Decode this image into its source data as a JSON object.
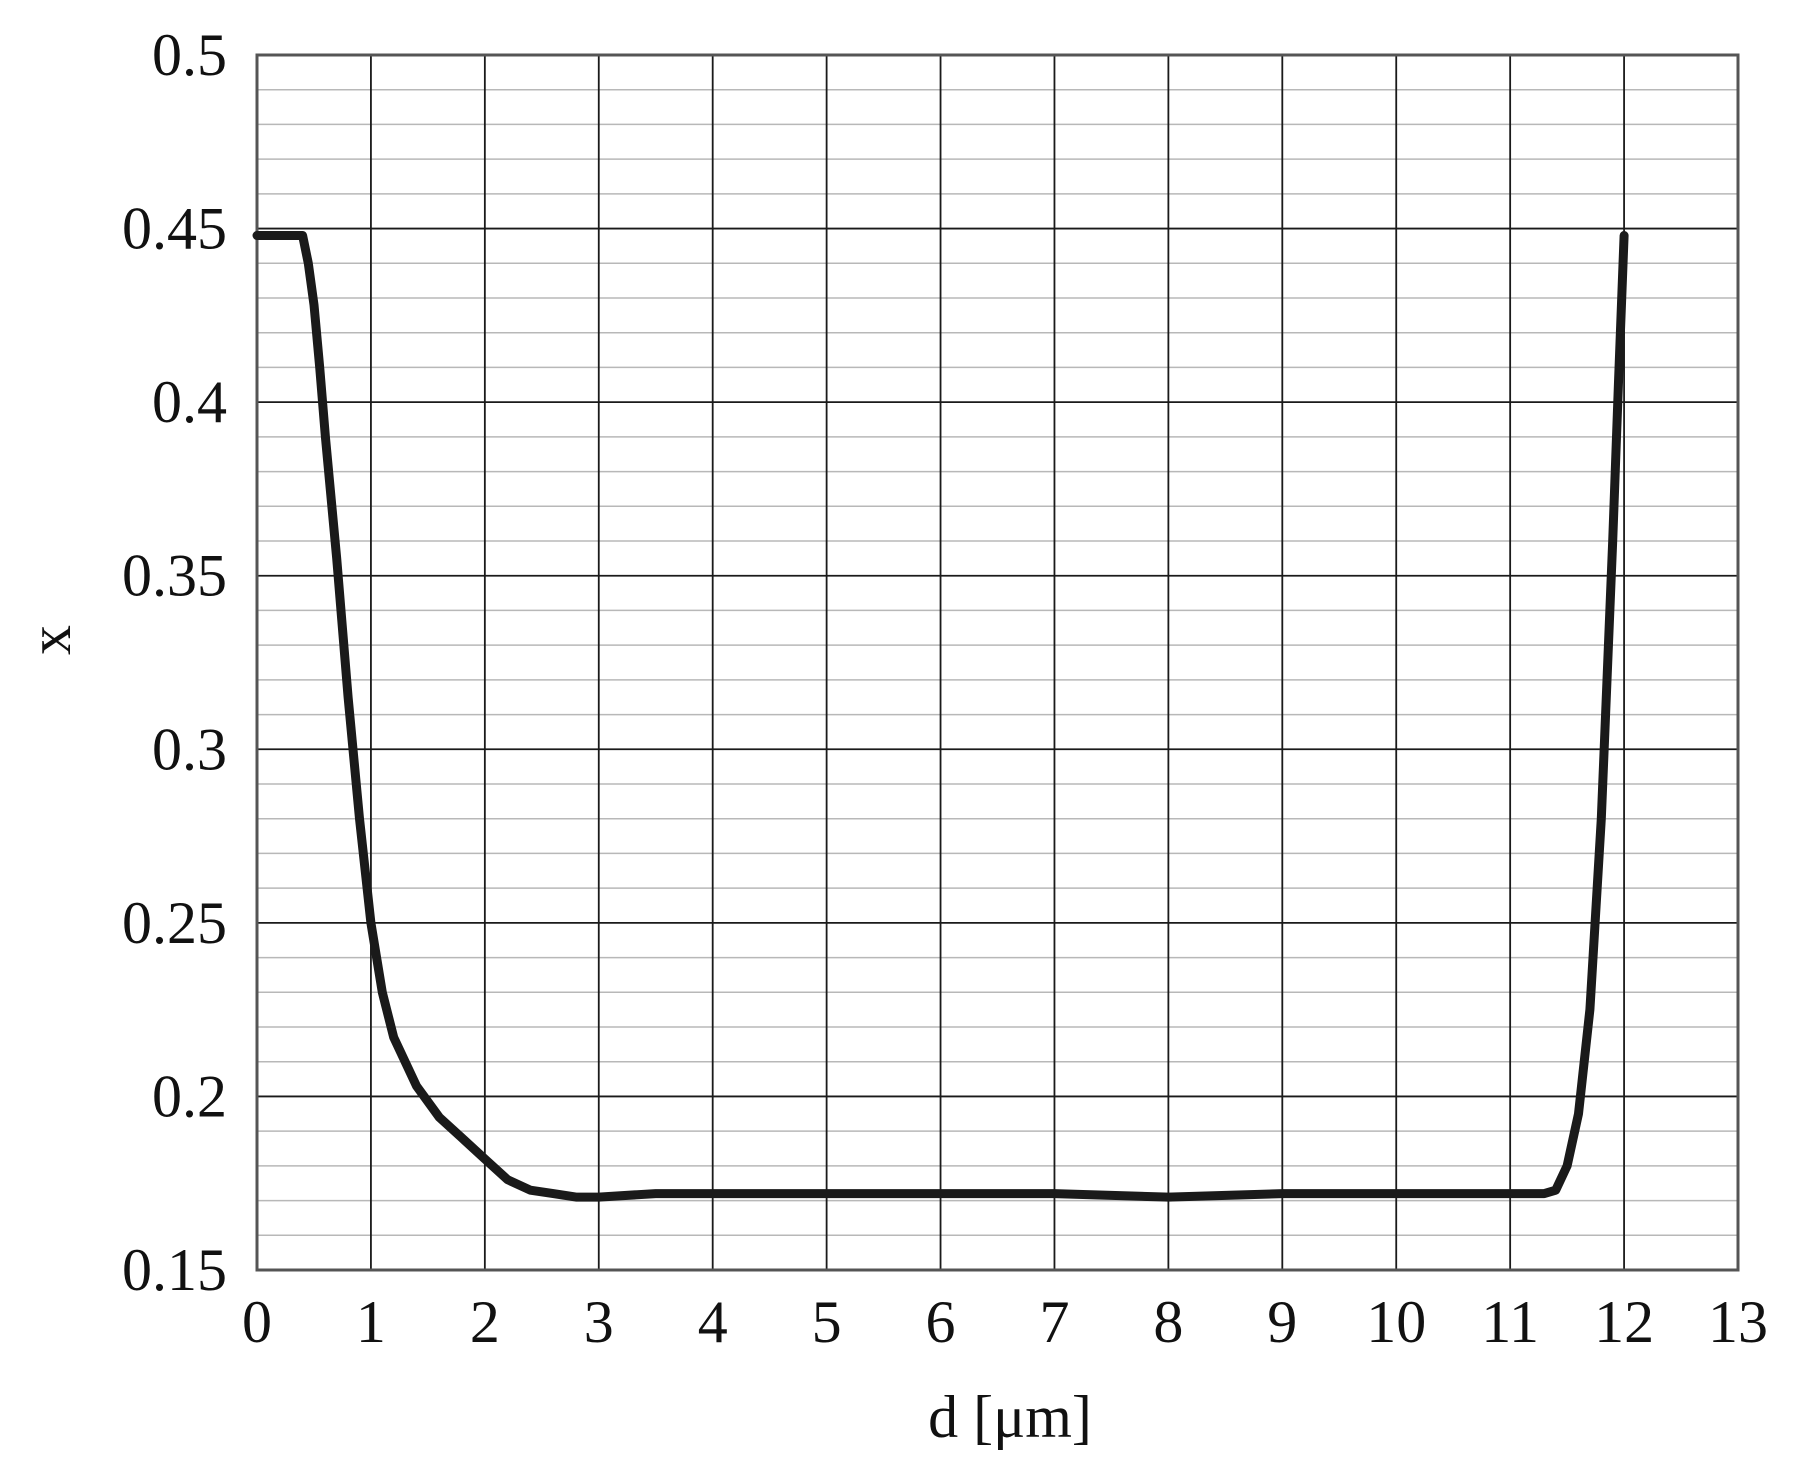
{
  "chart_data": {
    "type": "line",
    "title": "",
    "xlabel": "d [μm]",
    "ylabel": "x",
    "xlim": [
      0,
      13
    ],
    "ylim": [
      0.15,
      0.5
    ],
    "x_ticks": [
      "0",
      "1",
      "2",
      "3",
      "4",
      "5",
      "6",
      "7",
      "8",
      "9",
      "10",
      "11",
      "12",
      "13"
    ],
    "y_ticks": [
      "0.15",
      "0.2",
      "0.25",
      "0.3",
      "0.35",
      "0.4",
      "0.45",
      "0.5"
    ],
    "grid": true,
    "minor_y_step": 0.01,
    "colors": {
      "line": "#1a1a1a",
      "major_grid": "#1a1a1a",
      "minor_grid": "#b8b8b8",
      "frame": "#555555"
    },
    "series": [
      {
        "x": [
          0,
          0.4,
          0.45,
          0.5,
          0.55,
          0.6,
          0.7,
          0.8,
          0.9,
          1.0,
          1.1,
          1.2,
          1.4,
          1.6,
          1.8,
          2.0,
          2.2,
          2.4,
          2.6,
          2.8,
          3.0,
          3.5,
          4,
          5,
          6,
          7,
          8,
          9,
          10,
          11,
          11.3,
          11.4,
          11.5,
          11.6,
          11.7,
          11.8,
          11.85,
          11.9,
          11.95,
          12.0
        ],
        "y": [
          0.448,
          0.448,
          0.44,
          0.428,
          0.41,
          0.39,
          0.355,
          0.315,
          0.28,
          0.25,
          0.23,
          0.217,
          0.203,
          0.194,
          0.188,
          0.182,
          0.176,
          0.173,
          0.172,
          0.171,
          0.171,
          0.172,
          0.172,
          0.172,
          0.172,
          0.172,
          0.171,
          0.172,
          0.172,
          0.172,
          0.172,
          0.173,
          0.18,
          0.195,
          0.225,
          0.28,
          0.32,
          0.36,
          0.405,
          0.448
        ]
      }
    ]
  }
}
